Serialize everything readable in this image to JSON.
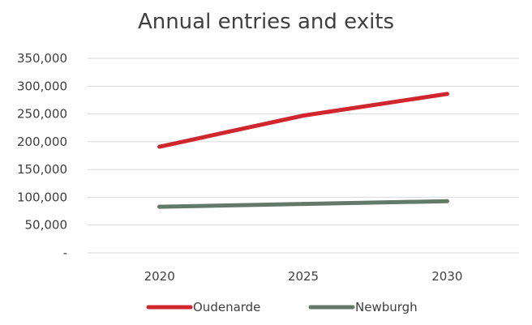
{
  "chart_data": {
    "type": "line",
    "title": "Annual entries and exits",
    "xlabel": "",
    "ylabel": "",
    "categories": [
      "2020",
      "2025",
      "2030"
    ],
    "y_ticks": [
      {
        "value": 0,
        "label": "-"
      },
      {
        "value": 50000,
        "label": "50,000"
      },
      {
        "value": 100000,
        "label": "100,000"
      },
      {
        "value": 150000,
        "label": "150,000"
      },
      {
        "value": 200000,
        "label": "200,000"
      },
      {
        "value": 250000,
        "label": "250,000"
      },
      {
        "value": 300000,
        "label": "300,000"
      },
      {
        "value": 350000,
        "label": "350,000"
      }
    ],
    "ylim": [
      0,
      350000
    ],
    "grid": true,
    "legend_position": "bottom",
    "series": [
      {
        "name": "Oudenarde",
        "color": "#d0272e",
        "values": [
          191000,
          247000,
          286000
        ]
      },
      {
        "name": "Newburgh",
        "color": "#637a6b",
        "values": [
          83000,
          88000,
          93000
        ]
      }
    ]
  }
}
